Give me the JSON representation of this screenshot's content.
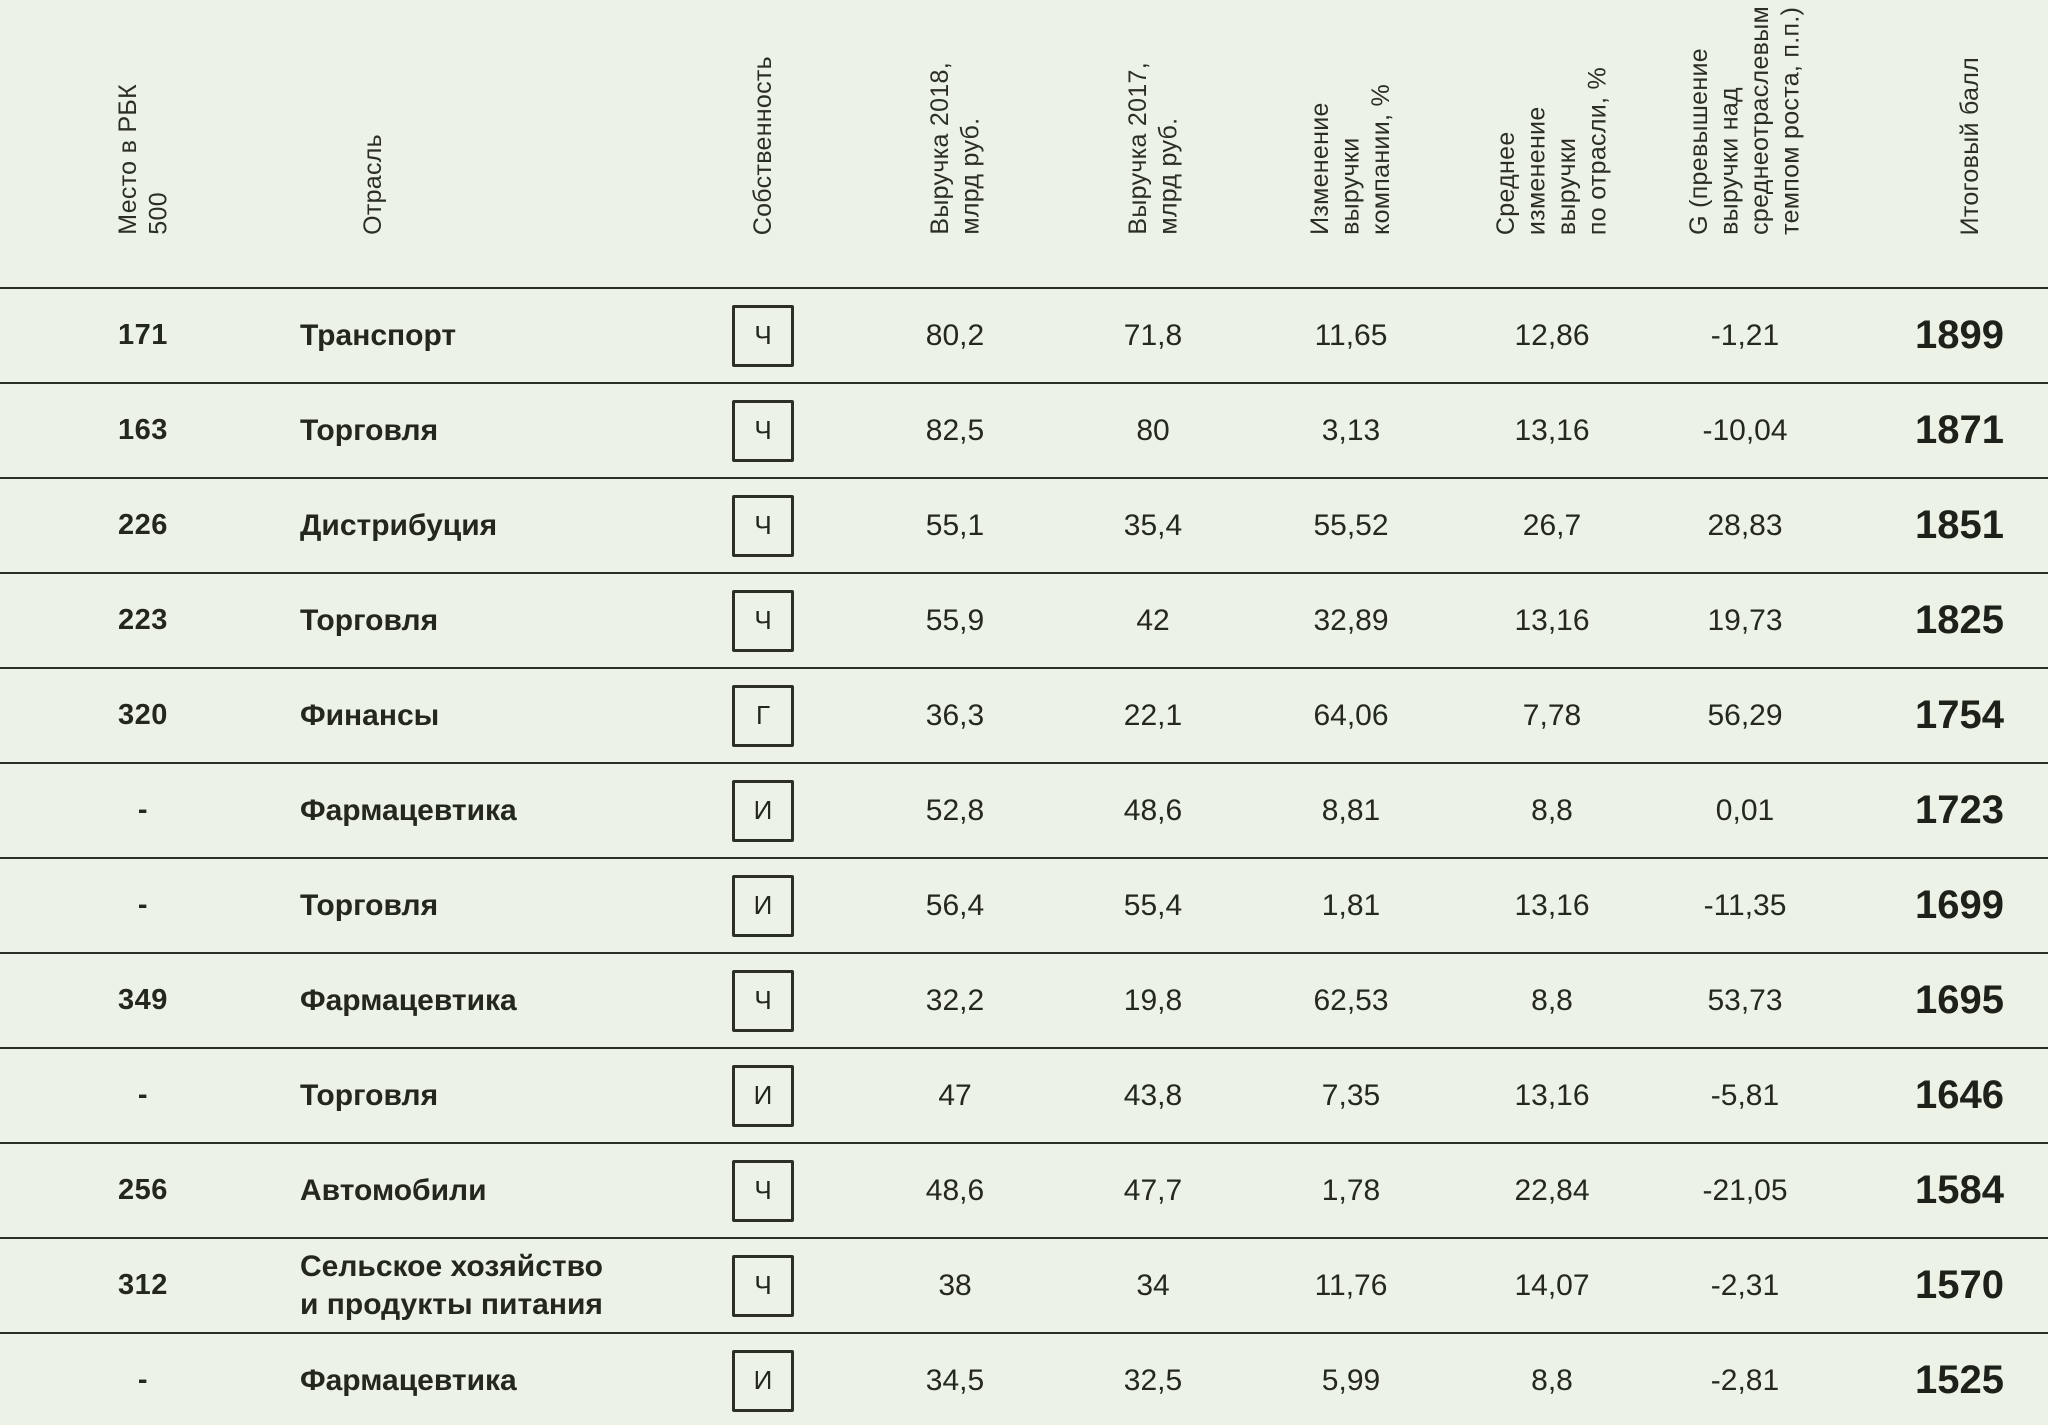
{
  "chart_data": {
    "type": "table",
    "title": "",
    "columns": [
      {
        "key": "rank",
        "label": "Место в РБК\n500"
      },
      {
        "key": "industry",
        "label": "Отрасль"
      },
      {
        "key": "ownership",
        "label": "Собственность"
      },
      {
        "key": "rev2018",
        "label": "Выручка 2018,\nмлрд руб."
      },
      {
        "key": "rev2017",
        "label": "Выручка 2017,\nмлрд руб."
      },
      {
        "key": "company_change",
        "label": "Изменение\nвыручки\nкомпании, %"
      },
      {
        "key": "industry_change",
        "label": "Среднее\nизменение\nвыручки\nпо отрасли, %"
      },
      {
        "key": "g",
        "label": "G (превышение\nвыручки над\nсреднеотраслевым\nтемпом роста, п.п.)"
      },
      {
        "key": "score",
        "label": "Итоговый балл"
      }
    ],
    "rows": [
      {
        "rank": "171",
        "industry": "Транспорт",
        "ownership": "Ч",
        "rev2018": "80,2",
        "rev2017": "71,8",
        "company_change": "11,65",
        "industry_change": "12,86",
        "g": "-1,21",
        "score": "1899"
      },
      {
        "rank": "163",
        "industry": "Торговля",
        "ownership": "Ч",
        "rev2018": "82,5",
        "rev2017": "80",
        "company_change": "3,13",
        "industry_change": "13,16",
        "g": "-10,04",
        "score": "1871"
      },
      {
        "rank": "226",
        "industry": "Дистрибуция",
        "ownership": "Ч",
        "rev2018": "55,1",
        "rev2017": "35,4",
        "company_change": "55,52",
        "industry_change": "26,7",
        "g": "28,83",
        "score": "1851"
      },
      {
        "rank": "223",
        "industry": "Торговля",
        "ownership": "Ч",
        "rev2018": "55,9",
        "rev2017": "42",
        "company_change": "32,89",
        "industry_change": "13,16",
        "g": "19,73",
        "score": "1825"
      },
      {
        "rank": "320",
        "industry": "Финансы",
        "ownership": "Г",
        "rev2018": "36,3",
        "rev2017": "22,1",
        "company_change": "64,06",
        "industry_change": "7,78",
        "g": "56,29",
        "score": "1754"
      },
      {
        "rank": "-",
        "industry": "Фармацевтика",
        "ownership": "И",
        "rev2018": "52,8",
        "rev2017": "48,6",
        "company_change": "8,81",
        "industry_change": "8,8",
        "g": "0,01",
        "score": "1723"
      },
      {
        "rank": "-",
        "industry": "Торговля",
        "ownership": "И",
        "rev2018": "56,4",
        "rev2017": "55,4",
        "company_change": "1,81",
        "industry_change": "13,16",
        "g": "-11,35",
        "score": "1699"
      },
      {
        "rank": "349",
        "industry": "Фармацевтика",
        "ownership": "Ч",
        "rev2018": "32,2",
        "rev2017": "19,8",
        "company_change": "62,53",
        "industry_change": "8,8",
        "g": "53,73",
        "score": "1695"
      },
      {
        "rank": "-",
        "industry": "Торговля",
        "ownership": "И",
        "rev2018": "47",
        "rev2017": "43,8",
        "company_change": "7,35",
        "industry_change": "13,16",
        "g": "-5,81",
        "score": "1646"
      },
      {
        "rank": "256",
        "industry": "Автомобили",
        "ownership": "Ч",
        "rev2018": "48,6",
        "rev2017": "47,7",
        "company_change": "1,78",
        "industry_change": "22,84",
        "g": "-21,05",
        "score": "1584"
      },
      {
        "rank": "312",
        "industry": "Сельское хозяйство\nи продукты питания",
        "ownership": "Ч",
        "rev2018": "38",
        "rev2017": "34",
        "company_change": "11,76",
        "industry_change": "14,07",
        "g": "-2,31",
        "score": "1570"
      },
      {
        "rank": "-",
        "industry": "Фармацевтика",
        "ownership": "И",
        "rev2018": "34,5",
        "rev2017": "32,5",
        "company_change": "5,99",
        "industry_change": "8,8",
        "g": "-2,81",
        "score": "1525"
      }
    ],
    "ownership_letters": [
      "Ч",
      "Г",
      "И"
    ],
    "layout": {
      "grid": "horizontal row separators only",
      "header_text": "rotated 90° bottom-up"
    }
  },
  "colors": {
    "background": "#edf2e6",
    "text": "#23271e",
    "header_text": "#2a2e24",
    "separator_line": "#2b2f25"
  }
}
